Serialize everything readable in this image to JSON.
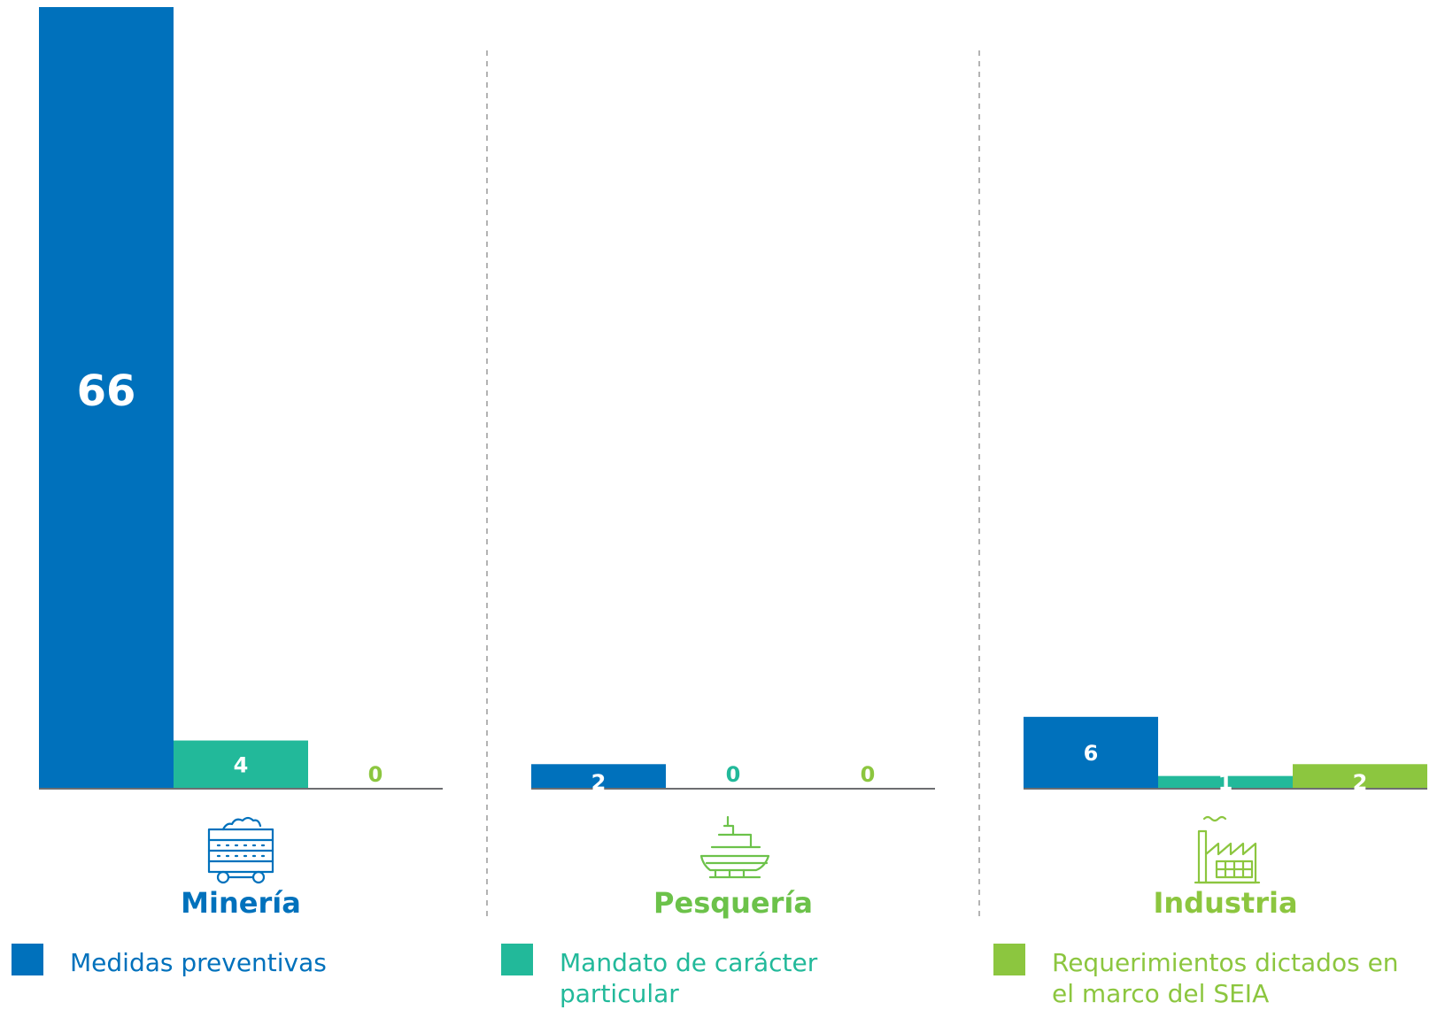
{
  "chart_data": {
    "type": "bar",
    "categories": [
      "Minería",
      "Pesquería",
      "Industria"
    ],
    "category_colors": [
      "#0071bc",
      "#6cc24a",
      "#8cc63f"
    ],
    "category_icons": [
      "mine-cart-icon",
      "fishing-boat-icon",
      "factory-icon"
    ],
    "series": [
      {
        "name": "Medidas preventivas",
        "color": "#0071bc",
        "values": [
          66,
          2,
          6
        ],
        "label_color": "#ffffff"
      },
      {
        "name": "Mandato de carácter particular",
        "color": "#22b99a",
        "values": [
          4,
          0,
          1
        ],
        "label_color": "#ffffff"
      },
      {
        "name": "Requerimientos dictados en el marco del SEIA",
        "color": "#8cc63f",
        "values": [
          0,
          0,
          2
        ],
        "label_color": "#ffffff"
      }
    ],
    "value_labels": [
      [
        "66",
        "2",
        "6"
      ],
      [
        "4",
        "0",
        "1"
      ],
      [
        "0",
        "0",
        "2"
      ]
    ],
    "legend": [
      {
        "lines": [
          "Medidas preventivas"
        ],
        "color": "#0071bc"
      },
      {
        "lines": [
          "Mandato de carácter",
          "particular"
        ],
        "color": "#22b99a"
      },
      {
        "lines": [
          "Requerimientos dictados en",
          "el marco del SEIA"
        ],
        "color": "#8cc63f"
      }
    ],
    "legend_placement": "bottom",
    "grid": false
  }
}
